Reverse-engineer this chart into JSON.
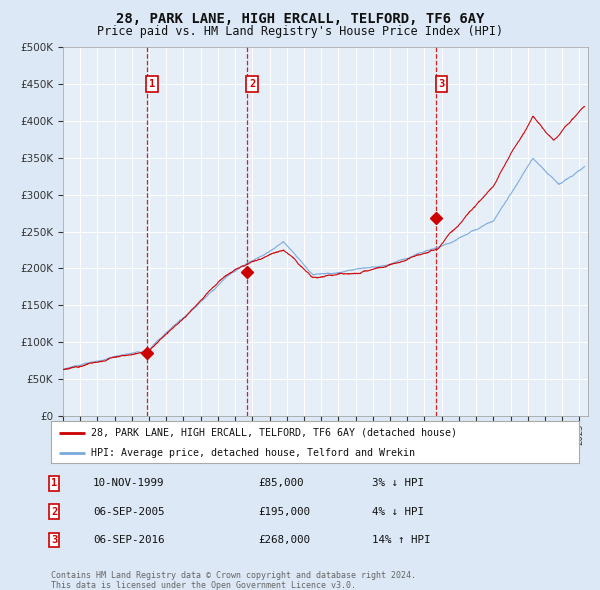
{
  "title": "28, PARK LANE, HIGH ERCALL, TELFORD, TF6 6AY",
  "subtitle": "Price paid vs. HM Land Registry's House Price Index (HPI)",
  "legend_line1": "28, PARK LANE, HIGH ERCALL, TELFORD, TF6 6AY (detached house)",
  "legend_line2": "HPI: Average price, detached house, Telford and Wrekin",
  "footer1": "Contains HM Land Registry data © Crown copyright and database right 2024.",
  "footer2": "This data is licensed under the Open Government Licence v3.0.",
  "sales": [
    {
      "num": 1,
      "date": "10-NOV-1999",
      "price": 85000,
      "rel": "3% ↓ HPI",
      "year": 1999.86
    },
    {
      "num": 2,
      "date": "06-SEP-2005",
      "price": 195000,
      "rel": "4% ↓ HPI",
      "year": 2005.68
    },
    {
      "num": 3,
      "date": "06-SEP-2016",
      "price": 268000,
      "rel": "14% ↑ HPI",
      "year": 2016.68
    }
  ],
  "ylim": [
    0,
    500000
  ],
  "yticks": [
    0,
    50000,
    100000,
    150000,
    200000,
    250000,
    300000,
    350000,
    400000,
    450000,
    500000
  ],
  "xlim_start": 1995.0,
  "xlim_end": 2025.5,
  "bg_color": "#dce8f5",
  "plot_bg_color": "#e6eef8",
  "grid_color": "#ffffff",
  "hpi_color": "#7aaadd",
  "price_color": "#cc0000",
  "sale_marker_color": "#cc0000",
  "vline_color": "#cc0000",
  "box_color": "#cc0000",
  "title_fontsize": 10,
  "subtitle_fontsize": 8.5
}
